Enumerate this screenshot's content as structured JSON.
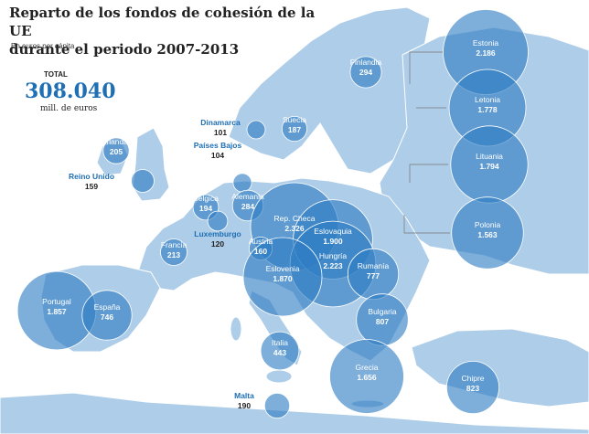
{
  "header": {
    "title_line1": "Reparto de los fondos de cohesión de la UE",
    "title_line2": "durante el periodo 2007-2013",
    "subtitle": "En euros per cápita"
  },
  "total": {
    "label": "TOTAL",
    "value": "308.040",
    "unit": "mill. de euros"
  },
  "colors": {
    "land": "#aecde8",
    "sea": "#ffffff",
    "bubble": "#2f7dc4",
    "label_inside": "#ffffff",
    "label_outside": "#1f6fb4"
  },
  "countries": [
    {
      "name": "Estonia",
      "value": "2.186",
      "amount": 2186
    },
    {
      "name": "Letonia",
      "value": "1.778",
      "amount": 1778
    },
    {
      "name": "Lituania",
      "value": "1.794",
      "amount": 1794
    },
    {
      "name": "Polonia",
      "value": "1.563",
      "amount": 1563
    },
    {
      "name": "Finlandia",
      "value": "294",
      "amount": 294
    },
    {
      "name": "Suecia",
      "value": "187",
      "amount": 187
    },
    {
      "name": "Dinamarca",
      "value": "101",
      "amount": 101
    },
    {
      "name": "Irlanda",
      "value": "205",
      "amount": 205
    },
    {
      "name": "Reino Unido",
      "value": "159",
      "amount": 159
    },
    {
      "name": "Países Bajos",
      "value": "104",
      "amount": 104
    },
    {
      "name": "Bélgica",
      "value": "194",
      "amount": 194
    },
    {
      "name": "Alemania",
      "value": "284",
      "amount": 284
    },
    {
      "name": "Luxemburgo",
      "value": "120",
      "amount": 120
    },
    {
      "name": "Francia",
      "value": "213",
      "amount": 213
    },
    {
      "name": "Rep. Checa",
      "value": "2.326",
      "amount": 2326
    },
    {
      "name": "Eslovaquia",
      "value": "1.900",
      "amount": 1900
    },
    {
      "name": "Hungría",
      "value": "2.223",
      "amount": 2223
    },
    {
      "name": "Austria",
      "value": "160",
      "amount": 160
    },
    {
      "name": "Eslovenia",
      "value": "1.870",
      "amount": 1870
    },
    {
      "name": "Rumanía",
      "value": "777",
      "amount": 777
    },
    {
      "name": "Bulgaria",
      "value": "807",
      "amount": 807
    },
    {
      "name": "Portugal",
      "value": "1.857",
      "amount": 1857
    },
    {
      "name": "España",
      "value": "746",
      "amount": 746
    },
    {
      "name": "Italia",
      "value": "443",
      "amount": 443
    },
    {
      "name": "Grecia",
      "value": "1.656",
      "amount": 1656
    },
    {
      "name": "Malta",
      "value": "190",
      "amount": 190
    },
    {
      "name": "Chipre",
      "value": "823",
      "amount": 823
    }
  ]
}
